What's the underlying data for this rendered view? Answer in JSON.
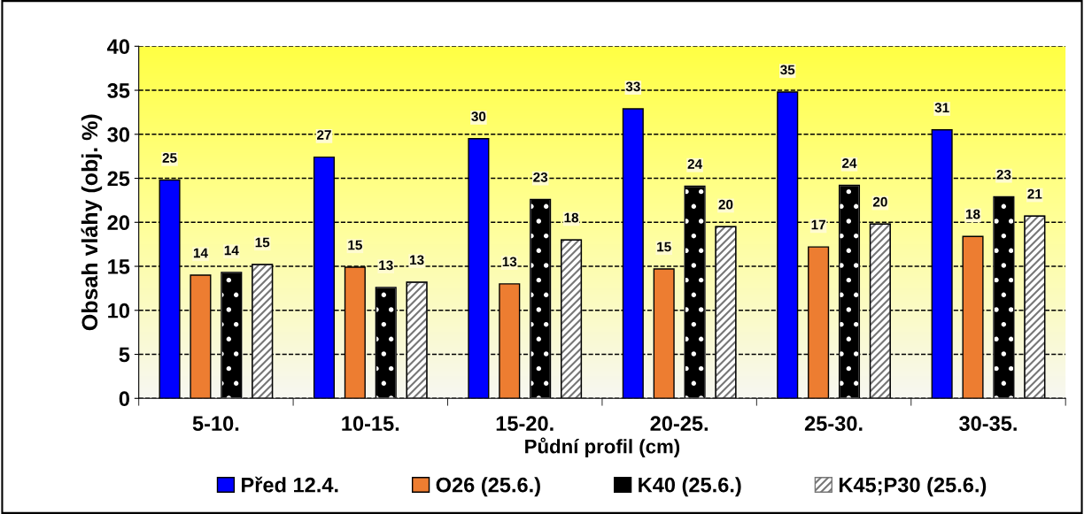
{
  "chart_data": {
    "type": "bar",
    "xlabel": "Půdní profil (cm)",
    "ylabel": "Obsah vláhy (obj. %)",
    "categories": [
      "5-10.",
      "10-15.",
      "15-20.",
      "20-25.",
      "25-30.",
      "30-35."
    ],
    "series": [
      {
        "name": "Před 12.4.",
        "color": "#0000ff",
        "values": [
          24.8,
          27.4,
          29.5,
          32.9,
          34.8,
          30.5
        ],
        "value_labels": [
          "25",
          "27",
          "30",
          "33",
          "35",
          "31"
        ]
      },
      {
        "name": "O26 (25.6.)",
        "color": "#ed7d31",
        "values": [
          14.0,
          14.9,
          13.0,
          14.7,
          17.2,
          18.4
        ],
        "value_labels": [
          "14",
          "15",
          "13",
          "15",
          "17",
          "18"
        ]
      },
      {
        "name": "K40 (25.6.)",
        "color": "#000000",
        "values": [
          14.3,
          12.6,
          22.6,
          24.1,
          24.2,
          22.9
        ],
        "value_labels": [
          "14",
          "13",
          "23",
          "24",
          "24",
          "23"
        ]
      },
      {
        "name": "K45;P30 (25.6.)",
        "color": "#777777",
        "values": [
          15.2,
          13.2,
          18.0,
          19.5,
          19.8,
          20.7
        ],
        "value_labels": [
          "15",
          "13",
          "18",
          "20",
          "20",
          "21"
        ]
      }
    ],
    "ylim": [
      0,
      40
    ],
    "yticks": [
      0,
      5,
      10,
      15,
      20,
      25,
      30,
      35,
      40
    ],
    "grid": "y",
    "line_style": "dashed",
    "legend": "bottom"
  }
}
